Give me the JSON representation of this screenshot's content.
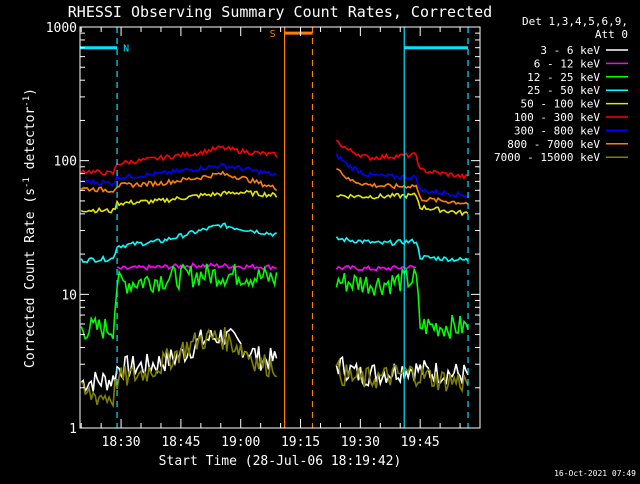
{
  "chart_data": {
    "type": "line",
    "title": "RHESSI Observing Summary Count Rates, Corrected",
    "xlabel": "Start Time (28-Jul-06 18:19:42)",
    "ylabel": "Corrected Count Rate (s⁻¹ detector⁻¹)",
    "ylabel_main": "Corrected Count Rate (s",
    "ylabel_mid": " detector",
    "ylabel_close": ")",
    "ylabel_sup": "-1",
    "footer": "16-Oct-2021 07:49",
    "detector_info": [
      "Det 1,3,4,5,6,9,",
      "Att 0"
    ],
    "y_scale": "log",
    "ylim": [
      1,
      1000
    ],
    "y_ticks": [
      {
        "value": 1,
        "label": "1"
      },
      {
        "value": 10,
        "label": "10"
      },
      {
        "value": 100,
        "label": "100"
      },
      {
        "value": 1000,
        "label": "1000"
      }
    ],
    "xlim": [
      "18:19:42",
      "20:00:00"
    ],
    "x_ticks": [
      {
        "value": "18:30",
        "label": "18:30"
      },
      {
        "value": "18:45",
        "label": "18:45"
      },
      {
        "value": "19:00",
        "label": "19:00"
      },
      {
        "value": "19:15",
        "label": "19:15"
      },
      {
        "value": "19:30",
        "label": "19:30"
      },
      {
        "value": "19:45",
        "label": "19:45"
      }
    ],
    "data_gap": [
      "19:10",
      "19:23"
    ],
    "markers": [
      {
        "label": "N",
        "color": "#00e5ff",
        "bar_level": 700,
        "bars": [
          [
            "18:19:42",
            "18:29"
          ],
          [
            "19:41",
            "19:57"
          ]
        ],
        "solid": [
          "19:41"
        ],
        "dashed": [
          "18:29",
          "19:57"
        ]
      },
      {
        "label": "S",
        "color": "#ff8000",
        "bar_level": 900,
        "bars": [
          [
            "19:11",
            "19:18"
          ]
        ],
        "solid": [
          "19:11"
        ],
        "dashed": [
          "19:18"
        ]
      }
    ],
    "series": [
      {
        "name": "3 - 6 keV",
        "color": "#ffffff",
        "values": [
          [
            "18:20",
            2.2
          ],
          [
            "18:28",
            2.3
          ],
          [
            "18:29",
            2.8
          ],
          [
            "18:36",
            2.9
          ],
          [
            "18:40",
            3.1
          ],
          [
            "18:45",
            3.5
          ],
          [
            "18:50",
            4.5
          ],
          [
            "18:55",
            4.9
          ],
          [
            "19:00",
            4.2
          ],
          [
            "19:05",
            3.3
          ],
          [
            "19:09",
            3.2
          ],
          [
            "19:24",
            3.0
          ],
          [
            "19:30",
            2.5
          ],
          [
            "19:36",
            2.6
          ],
          [
            "19:42",
            2.8
          ],
          [
            "19:45",
            2.7
          ],
          [
            "19:50",
            2.6
          ],
          [
            "19:57",
            2.5
          ]
        ]
      },
      {
        "name": "6 - 12 keV",
        "color": "#ff00ff",
        "values": [
          [
            "18:29",
            15.5
          ],
          [
            "18:40",
            16
          ],
          [
            "18:50",
            16.5
          ],
          [
            "19:00",
            16.2
          ],
          [
            "19:09",
            16
          ],
          [
            "19:24",
            15.8
          ],
          [
            "19:35",
            15.5
          ],
          [
            "19:42",
            16
          ],
          [
            "19:44",
            15.9
          ]
        ]
      },
      {
        "name": "12 - 25 keV",
        "color": "#00ff00",
        "values": [
          [
            "18:20",
            5.5
          ],
          [
            "18:28",
            5.6
          ],
          [
            "18:29",
            12
          ],
          [
            "18:40",
            13
          ],
          [
            "18:50",
            14
          ],
          [
            "19:00",
            14
          ],
          [
            "19:09",
            13
          ],
          [
            "19:24",
            12.5
          ],
          [
            "19:35",
            12
          ],
          [
            "19:44",
            13
          ],
          [
            "19:45",
            5.8
          ],
          [
            "19:57",
            5.7
          ]
        ]
      },
      {
        "name": "25 - 50 keV",
        "color": "#00ffff",
        "values": [
          [
            "18:20",
            18
          ],
          [
            "18:28",
            18.5
          ],
          [
            "18:29",
            23
          ],
          [
            "18:40",
            25
          ],
          [
            "18:50",
            30
          ],
          [
            "18:55",
            33
          ],
          [
            "19:00",
            31
          ],
          [
            "19:09",
            28
          ],
          [
            "19:24",
            26
          ],
          [
            "19:30",
            25
          ],
          [
            "19:35",
            24
          ],
          [
            "19:44",
            25
          ],
          [
            "19:45",
            19
          ],
          [
            "19:57",
            18
          ]
        ]
      },
      {
        "name": "50 - 100 keV",
        "color": "#e6e600",
        "values": [
          [
            "18:20",
            43
          ],
          [
            "18:28",
            42
          ],
          [
            "18:29",
            48
          ],
          [
            "18:40",
            50
          ],
          [
            "18:50",
            55
          ],
          [
            "19:00",
            58
          ],
          [
            "19:09",
            55
          ],
          [
            "19:24",
            55
          ],
          [
            "19:30",
            54
          ],
          [
            "19:35",
            54
          ],
          [
            "19:44",
            55
          ],
          [
            "19:45",
            45
          ],
          [
            "19:57",
            40
          ]
        ]
      },
      {
        "name": "100 - 300 keV",
        "color": "#ff0000",
        "values": [
          [
            "18:20",
            84
          ],
          [
            "18:28",
            80
          ],
          [
            "18:29",
            95
          ],
          [
            "18:40",
            105
          ],
          [
            "18:50",
            115
          ],
          [
            "18:55",
            125
          ],
          [
            "19:00",
            118
          ],
          [
            "19:09",
            110
          ],
          [
            "19:24",
            140
          ],
          [
            "19:27",
            120
          ],
          [
            "19:32",
            105
          ],
          [
            "19:38",
            108
          ],
          [
            "19:44",
            110
          ],
          [
            "19:45",
            85
          ],
          [
            "19:57",
            75
          ]
        ]
      },
      {
        "name": "300 - 800 keV",
        "color": "#0000ff",
        "values": [
          [
            "18:20",
            70
          ],
          [
            "18:28",
            68
          ],
          [
            "18:29",
            75
          ],
          [
            "18:40",
            80
          ],
          [
            "18:50",
            88
          ],
          [
            "18:55",
            92
          ],
          [
            "19:00",
            88
          ],
          [
            "19:09",
            78
          ],
          [
            "19:24",
            110
          ],
          [
            "19:27",
            92
          ],
          [
            "19:32",
            78
          ],
          [
            "19:38",
            76
          ],
          [
            "19:44",
            75
          ],
          [
            "19:45",
            60
          ],
          [
            "19:57",
            55
          ]
        ]
      },
      {
        "name": "800 - 7000 keV",
        "color": "#ff8000",
        "values": [
          [
            "18:20",
            62
          ],
          [
            "18:28",
            60
          ],
          [
            "18:29",
            65
          ],
          [
            "18:40",
            68
          ],
          [
            "18:50",
            75
          ],
          [
            "18:55",
            80
          ],
          [
            "19:00",
            75
          ],
          [
            "19:09",
            62
          ],
          [
            "19:24",
            90
          ],
          [
            "19:27",
            72
          ],
          [
            "19:32",
            66
          ],
          [
            "19:38",
            64
          ],
          [
            "19:44",
            65
          ],
          [
            "19:45",
            52
          ],
          [
            "19:57",
            48
          ]
        ]
      },
      {
        "name": "7000 - 15000 keV",
        "color": "#808000",
        "values": [
          [
            "18:20",
            1.8
          ],
          [
            "18:28",
            1.7
          ],
          [
            "18:29",
            2.3
          ],
          [
            "18:36",
            2.6
          ],
          [
            "18:40",
            3.0
          ],
          [
            "18:45",
            3.8
          ],
          [
            "18:50",
            4.6
          ],
          [
            "18:55",
            4.8
          ],
          [
            "19:00",
            4.0
          ],
          [
            "19:05",
            3.0
          ],
          [
            "19:09",
            2.9
          ],
          [
            "19:24",
            2.6
          ],
          [
            "19:30",
            2.3
          ],
          [
            "19:36",
            2.4
          ],
          [
            "19:42",
            2.6
          ],
          [
            "19:45",
            2.5
          ],
          [
            "19:50",
            2.3
          ],
          [
            "19:57",
            2.2
          ]
        ]
      }
    ]
  }
}
